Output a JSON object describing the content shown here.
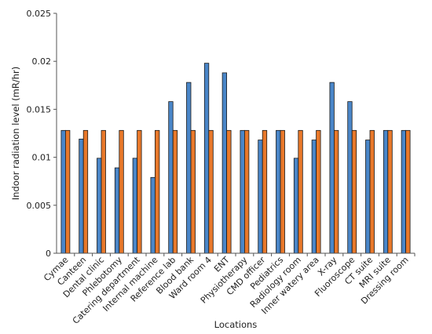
{
  "chart_data": {
    "type": "bar",
    "xlabel": "Locations",
    "ylabel": "Indoor radiation level (mR/hr)",
    "ylim": [
      0,
      0.025
    ],
    "yticks": [
      "0",
      "0.005",
      "0.01",
      "0.015",
      "0.02",
      "0.025"
    ],
    "grid": false,
    "legend": "none",
    "categories": [
      "Cymae",
      "Canteen",
      "Dental clinic",
      "Phlebotomy",
      "Catering department",
      "Internal machine",
      "Reference lab",
      "Blood bank",
      "Ward room 4",
      "ENT",
      "Physiotherapy",
      "CMD officer",
      "Pediatrics",
      "Radiology room",
      "Inner watery area",
      "X-ray",
      "Fluoroscope",
      "CT suite",
      "MRI suite",
      "Dressing room"
    ],
    "series": [
      {
        "color": "#4a86c8",
        "values": [
          0.0128,
          0.0119,
          0.0099,
          0.0089,
          0.0099,
          0.0079,
          0.0158,
          0.0178,
          0.0198,
          0.0188,
          0.0128,
          0.0118,
          0.0128,
          0.0099,
          0.0118,
          0.0178,
          0.0158,
          0.0118,
          0.0128,
          0.0128
        ]
      },
      {
        "color": "#e8782a",
        "values": [
          0.0128,
          0.0128,
          0.0128,
          0.0128,
          0.0128,
          0.0128,
          0.0128,
          0.0128,
          0.0128,
          0.0128,
          0.0128,
          0.0128,
          0.0128,
          0.0128,
          0.0128,
          0.0128,
          0.0128,
          0.0128,
          0.0128,
          0.0128
        ]
      }
    ]
  }
}
